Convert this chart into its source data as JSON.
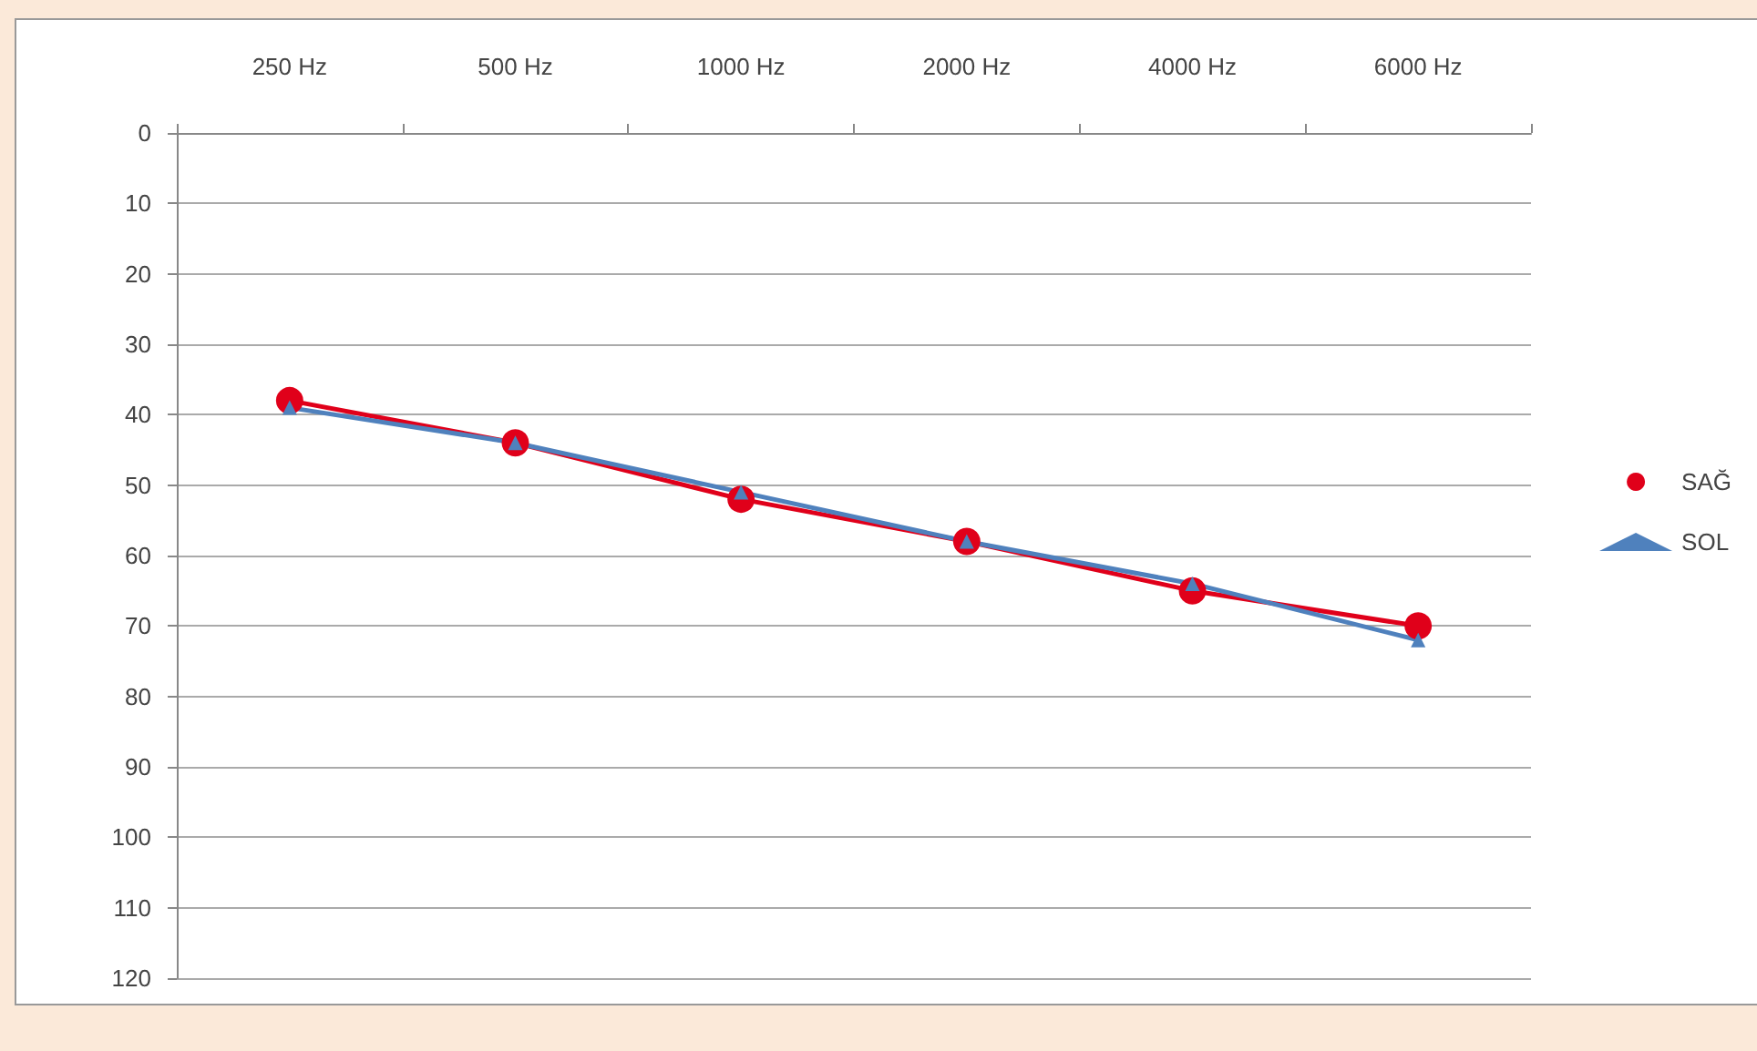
{
  "chart_data": {
    "type": "line",
    "categories": [
      "250 Hz",
      "500 Hz",
      "1000 Hz",
      "2000 Hz",
      "4000 Hz",
      "6000 Hz"
    ],
    "series": [
      {
        "name": "SAĞ",
        "color": "#e0001a",
        "marker": "circle",
        "values": [
          38,
          44,
          52,
          58,
          65,
          70
        ]
      },
      {
        "name": "SOL",
        "color": "#4f81bd",
        "marker": "triangle",
        "values": [
          39,
          44,
          51,
          58,
          64,
          72
        ]
      }
    ],
    "ylim": [
      120,
      0
    ],
    "yticks": [
      0,
      10,
      20,
      30,
      40,
      50,
      60,
      70,
      80,
      90,
      100,
      110,
      120
    ],
    "grid": "y",
    "legend": "right"
  }
}
